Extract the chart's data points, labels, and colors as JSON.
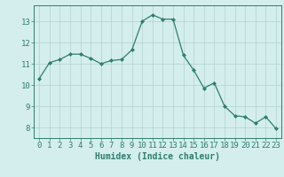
{
  "x": [
    0,
    1,
    2,
    3,
    4,
    5,
    6,
    7,
    8,
    9,
    10,
    11,
    12,
    13,
    14,
    15,
    16,
    17,
    18,
    19,
    20,
    21,
    22,
    23
  ],
  "y": [
    10.3,
    11.05,
    11.2,
    11.45,
    11.45,
    11.25,
    11.0,
    11.15,
    11.2,
    11.65,
    13.0,
    13.3,
    13.1,
    13.1,
    11.4,
    10.7,
    9.85,
    10.1,
    9.0,
    8.55,
    8.5,
    8.2,
    8.5,
    7.95
  ],
  "line_color": "#2e7d6e",
  "marker": "D",
  "marker_size": 2.2,
  "bg_color": "#d4eeee",
  "grid_color": "#b8d4d4",
  "xlabel": "Humidex (Indice chaleur)",
  "xlim": [
    -0.5,
    23.5
  ],
  "ylim": [
    7.5,
    13.75
  ],
  "yticks": [
    8,
    9,
    10,
    11,
    12,
    13
  ],
  "xticks": [
    0,
    1,
    2,
    3,
    4,
    5,
    6,
    7,
    8,
    9,
    10,
    11,
    12,
    13,
    14,
    15,
    16,
    17,
    18,
    19,
    20,
    21,
    22,
    23
  ],
  "axis_color": "#2e7d6e",
  "tick_color": "#2e7d6e",
  "label_color": "#2e7d6e",
  "xlabel_fontsize": 7,
  "tick_fontsize": 6.5,
  "ytick_fontsize": 6.5
}
